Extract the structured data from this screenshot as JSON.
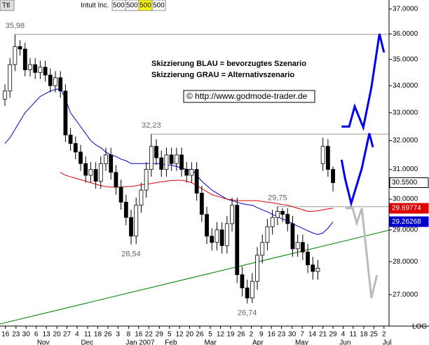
{
  "chart_data": {
    "type": "candlestick",
    "symbol": "Ttl",
    "name": "Intuit Inc.",
    "fields": [
      "500",
      "500",
      "500",
      "500"
    ],
    "notes": [
      "Skizzierung BLAU = bevorzugtes Szenario",
      "Skizzierung GRAU = Alternativszenario"
    ],
    "source": "© http://www.godmode-trader.de",
    "scale_label": "LOG",
    "log_scale": true,
    "ylim": [
      26.08,
      37.37
    ],
    "yticks": [
      {
        "value": 27,
        "label": "27.0000"
      },
      {
        "value": 28,
        "label": "28.0000"
      },
      {
        "value": 29,
        "label": "29.0000"
      },
      {
        "value": 30,
        "label": "30.0000"
      },
      {
        "value": 31,
        "label": "31.0000"
      },
      {
        "value": 32,
        "label": "32.0000"
      },
      {
        "value": 33,
        "label": "33.0000"
      },
      {
        "value": 34,
        "label": "34.0000"
      },
      {
        "value": 35,
        "label": "35.0000"
      },
      {
        "value": 36,
        "label": "36.0000"
      },
      {
        "value": 37,
        "label": "37.0000"
      }
    ],
    "xlim": [
      -0.97,
      76.1
    ],
    "xticks": [
      {
        "value": 0.1,
        "label": "16"
      },
      {
        "value": 2.2,
        "label": "23"
      },
      {
        "value": 4.2,
        "label": "30"
      },
      {
        "value": 6.2,
        "label": "6"
      },
      {
        "value": 8.2,
        "label": "13"
      },
      {
        "value": 10.3,
        "label": "20"
      },
      {
        "value": 12.3,
        "label": "27"
      },
      {
        "value": 14.3,
        "label": "4"
      },
      {
        "value": 16.4,
        "label": "11"
      },
      {
        "value": 18.4,
        "label": "18"
      },
      {
        "value": 20.4,
        "label": "26"
      },
      {
        "value": 22.4,
        "label": "3"
      },
      {
        "value": 24.5,
        "label": "8"
      },
      {
        "value": 26.5,
        "label": "16"
      },
      {
        "value": 28.5,
        "label": "22"
      },
      {
        "value": 30.6,
        "label": "29"
      },
      {
        "value": 32.6,
        "label": "5"
      },
      {
        "value": 34.6,
        "label": "12"
      },
      {
        "value": 36.6,
        "label": "20"
      },
      {
        "value": 38.6,
        "label": "26"
      },
      {
        "value": 40.7,
        "label": "5"
      },
      {
        "value": 42.7,
        "label": "12"
      },
      {
        "value": 44.7,
        "label": "19"
      },
      {
        "value": 46.8,
        "label": "26"
      },
      {
        "value": 48.8,
        "label": "2"
      },
      {
        "value": 50.8,
        "label": "9"
      },
      {
        "value": 52.8,
        "label": "16"
      },
      {
        "value": 54.8,
        "label": "23"
      },
      {
        "value": 56.9,
        "label": "30"
      },
      {
        "value": 58.9,
        "label": "7"
      },
      {
        "value": 60.9,
        "label": "14"
      },
      {
        "value": 63.0,
        "label": "21"
      },
      {
        "value": 65.0,
        "label": "29"
      },
      {
        "value": 67.0,
        "label": "4"
      },
      {
        "value": 69.0,
        "label": "11"
      },
      {
        "value": 71.1,
        "label": "18"
      },
      {
        "value": 73.1,
        "label": "25"
      },
      {
        "value": 75.1,
        "label": "2"
      }
    ],
    "months": [
      {
        "value": 7.6,
        "label": "Nov"
      },
      {
        "value": 16.3,
        "label": "Dec"
      },
      {
        "value": 26.8,
        "label": "Jan 2007"
      },
      {
        "value": 32.9,
        "label": "Feb"
      },
      {
        "value": 40.7,
        "label": "Mar"
      },
      {
        "value": 50.1,
        "label": "Apr"
      },
      {
        "value": 58.8,
        "label": "May"
      },
      {
        "value": 67.4,
        "label": "Jun"
      },
      {
        "value": 75.7,
        "label": "Jul"
      }
    ],
    "open": [
      33.5,
      33.8,
      34.8,
      35.5,
      35.4,
      34.6,
      34.8,
      34.5,
      34.7,
      34.4,
      34.0,
      34.3,
      33.8,
      32.2,
      31.9,
      31.6,
      31.2,
      30.8,
      31.0,
      30.6,
      31.2,
      31.5,
      30.9,
      30.4,
      29.9,
      29.4,
      28.8,
      29.8,
      30.3,
      31.0,
      31.8,
      31.4,
      31.0,
      31.5,
      31.2,
      31.5,
      31.0,
      30.8,
      31.0,
      30.2,
      29.5,
      28.8,
      28.6,
      29.0,
      28.5,
      29.2,
      29.8,
      27.6,
      27.2,
      26.9,
      27.4,
      28.2,
      28.6,
      29.1,
      29.4,
      29.6,
      29.5,
      29.2,
      28.4,
      28.6,
      28.3,
      27.9,
      27.7,
      31.2,
      31.8,
      31.0
    ],
    "high": [
      34.05,
      35.05,
      35.98,
      35.75,
      35.65,
      35.05,
      35.05,
      34.95,
      34.95,
      34.65,
      34.55,
      34.55,
      34.05,
      32.45,
      32.15,
      31.85,
      31.45,
      31.25,
      31.25,
      31.45,
      31.75,
      31.75,
      31.15,
      30.65,
      30.15,
      29.65,
      30.05,
      30.55,
      31.25,
      32.23,
      32.05,
      31.65,
      31.75,
      31.75,
      31.75,
      31.75,
      31.25,
      31.25,
      31.25,
      30.45,
      29.75,
      29.05,
      29.25,
      29.25,
      29.45,
      30.05,
      30.05,
      27.85,
      27.45,
      27.65,
      28.45,
      28.85,
      29.35,
      29.65,
      29.75,
      29.7,
      29.7,
      29.45,
      28.85,
      28.85,
      28.55,
      28.15,
      28.05,
      32.1,
      32.05,
      31.1
    ],
    "low": [
      33.25,
      33.55,
      34.55,
      35.15,
      34.35,
      34.35,
      34.25,
      34.25,
      34.15,
      33.75,
      33.75,
      33.55,
      31.95,
      31.65,
      31.35,
      30.95,
      30.55,
      30.55,
      30.35,
      30.35,
      30.95,
      30.65,
      30.15,
      29.65,
      29.15,
      28.54,
      28.55,
      29.55,
      30.05,
      30.75,
      31.15,
      30.75,
      30.75,
      30.95,
      30.95,
      30.75,
      30.55,
      30.55,
      29.95,
      29.25,
      28.55,
      28.35,
      28.35,
      28.25,
      28.25,
      28.95,
      27.35,
      26.95,
      26.74,
      26.75,
      27.15,
      27.95,
      28.35,
      28.85,
      29.15,
      29.25,
      28.95,
      28.15,
      28.15,
      28.05,
      27.65,
      27.45,
      27.45,
      30.95,
      30.75,
      30.25
    ],
    "close": [
      33.8,
      34.8,
      35.5,
      35.4,
      34.6,
      34.8,
      34.5,
      34.7,
      34.4,
      34.0,
      34.3,
      33.8,
      32.2,
      31.9,
      31.6,
      31.2,
      30.8,
      31.0,
      30.6,
      31.2,
      31.5,
      30.9,
      30.4,
      29.9,
      29.4,
      28.8,
      29.8,
      30.3,
      31.0,
      31.8,
      31.4,
      31.0,
      31.5,
      31.2,
      31.5,
      31.0,
      30.8,
      31.0,
      30.2,
      29.5,
      28.8,
      28.6,
      29.0,
      28.5,
      29.2,
      29.8,
      27.6,
      27.2,
      26.9,
      27.4,
      28.2,
      28.6,
      29.1,
      29.4,
      29.6,
      29.5,
      29.2,
      28.4,
      28.6,
      28.3,
      27.9,
      27.7,
      27.8,
      31.8,
      31.0,
      30.55
    ],
    "series": [
      {
        "color": "#0000cc",
        "values": [
          31.9,
          32.1,
          32.4,
          32.7,
          33.0,
          33.2,
          33.4,
          33.6,
          33.7,
          33.8,
          33.85,
          33.9,
          33.5,
          33.0,
          32.75,
          32.5,
          32.25,
          32.0,
          31.85,
          31.75,
          31.6,
          31.5,
          31.45,
          31.35,
          31.3,
          31.2,
          31.2,
          31.2,
          31.2,
          31.2,
          31.2,
          31.2,
          31.15,
          31.15,
          31.1,
          31.05,
          31.0,
          31.0,
          30.8,
          30.6,
          30.45,
          30.3,
          30.2,
          30.1,
          30.0,
          29.95,
          29.9,
          29.85,
          29.82,
          29.8,
          29.72,
          29.65,
          29.58,
          29.5,
          29.42,
          29.35,
          29.28,
          29.2,
          29.12,
          29.05,
          28.97,
          28.9,
          28.85,
          28.9,
          29.05,
          29.26
        ]
      },
      {
        "color": "#dd0000",
        "values": [
          null,
          null,
          null,
          null,
          null,
          null,
          null,
          null,
          null,
          null,
          null,
          30.9,
          30.8,
          30.75,
          30.7,
          30.65,
          30.6,
          30.55,
          30.5,
          30.45,
          30.42,
          30.4,
          30.4,
          30.4,
          30.42,
          30.42,
          30.45,
          30.48,
          30.5,
          30.52,
          30.55,
          30.58,
          30.6,
          30.62,
          30.63,
          30.63,
          30.6,
          30.55,
          30.45,
          30.35,
          30.25,
          30.15,
          30.1,
          30.05,
          30.0,
          29.98,
          29.95,
          29.95,
          29.95,
          29.95,
          29.95,
          29.92,
          29.9,
          29.88,
          29.85,
          29.82,
          29.8,
          29.75,
          29.7,
          29.65,
          29.6,
          29.6,
          29.62,
          29.65,
          29.68,
          29.7
        ]
      }
    ],
    "price_tags": [
      {
        "value": 30.55,
        "label": "30.5500",
        "color": "#ffffff"
      },
      {
        "value": 29.69774,
        "label": "29.69774",
        "color": "#dd0000"
      },
      {
        "value": 29.26268,
        "label": "29.26268",
        "color": "#0000cc"
      }
    ],
    "annotations": [
      {
        "value": 35.98,
        "label": "35,98",
        "at": 2,
        "line": true
      },
      {
        "value": 32.23,
        "label": "32,23",
        "at": 29,
        "line": true
      },
      {
        "value": 29.75,
        "label": "29,75",
        "at": 54,
        "line": true
      },
      {
        "value": 28.54,
        "label": "28,54",
        "at": 25,
        "line": false
      },
      {
        "value": 26.74,
        "label": "26,74",
        "at": 48,
        "line": false
      }
    ],
    "trendline": {
      "color": "#008000",
      "x": [
        -0.97,
        76.1
      ],
      "y": [
        26.14,
        28.99
      ]
    },
    "scenarios": [
      {
        "color": "#0000ee",
        "x": [
          66.7,
          68.2,
          69.3,
          71.0,
          72.6,
          74.2,
          75.1
        ],
        "y": [
          32.5,
          32.5,
          33.23,
          32.47,
          33.93,
          36.0,
          35.27
        ]
      },
      {
        "color": "#0000ee",
        "x": [
          66.7,
          67.4,
          68.6,
          70.7,
          72.2,
          72.9
        ],
        "y": [
          31.33,
          30.68,
          29.86,
          31.03,
          32.26,
          31.77
        ]
      },
      {
        "color": "#bbbbbb",
        "x": [
          67.5,
          68.9,
          69.7,
          70.7,
          72.6,
          73.7
        ],
        "y": [
          29.7,
          29.7,
          29.22,
          29.7,
          26.9,
          27.59
        ]
      }
    ]
  }
}
